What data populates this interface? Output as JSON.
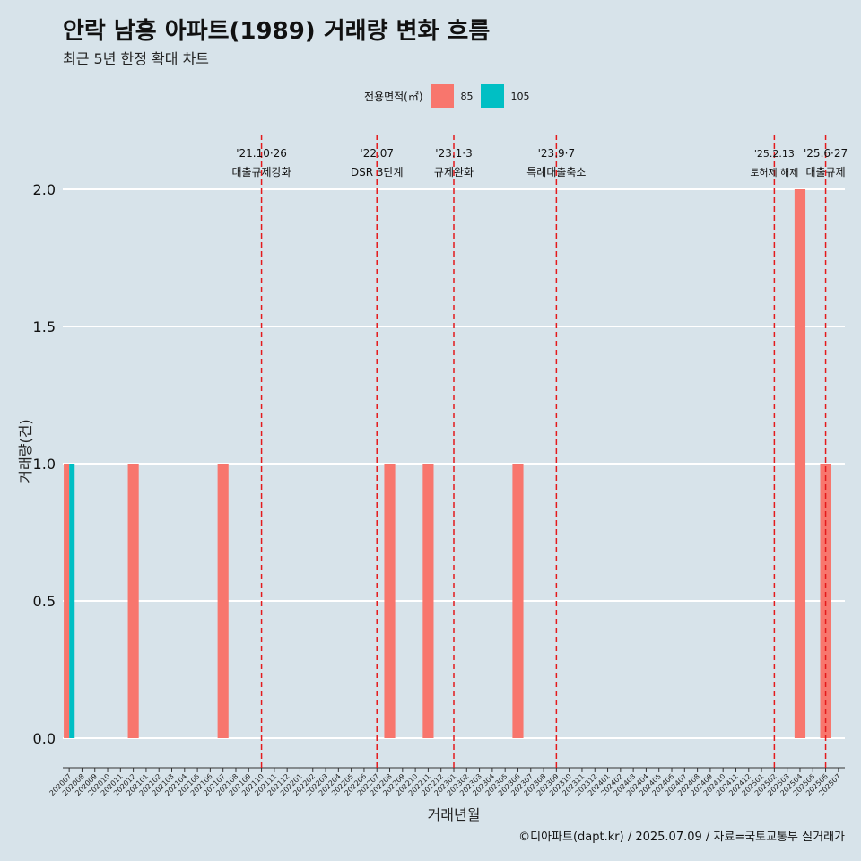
{
  "title": "안락 남흥 아파트(1989) 거래량 변화 흐름",
  "subtitle": "최근 5년 한정 확대 차트",
  "legend": {
    "title": "전용면적(㎡)"
  },
  "caption": "©디아파트(dapt.kr) / 2025.07.09 / 자료=국토교통부 실거래가",
  "colors": {
    "85": "#f8766d",
    "105": "#00bfc4",
    "background": "#d7e3ea",
    "grid": "#ffffff",
    "event_line": "#e41a1c"
  },
  "chart_data": {
    "type": "bar",
    "xlabel": "거래년월",
    "ylabel": "거래량(건)",
    "ylim": [
      0,
      2
    ],
    "yticks": [
      "0.0",
      "0.5",
      "1.0",
      "1.5",
      "2.0"
    ],
    "grid": true,
    "legend_position": "top",
    "categories": [
      "202007",
      "202008",
      "202009",
      "202010",
      "202011",
      "202012",
      "202101",
      "202102",
      "202103",
      "202104",
      "202105",
      "202106",
      "202107",
      "202108",
      "202109",
      "202110",
      "202111",
      "202112",
      "202201",
      "202202",
      "202203",
      "202204",
      "202205",
      "202206",
      "202207",
      "202208",
      "202209",
      "202210",
      "202211",
      "202212",
      "202301",
      "202302",
      "202303",
      "202304",
      "202305",
      "202306",
      "202307",
      "202308",
      "202309",
      "202310",
      "202311",
      "202312",
      "202401",
      "202402",
      "202403",
      "202404",
      "202405",
      "202406",
      "202407",
      "202408",
      "202409",
      "202410",
      "202411",
      "202412",
      "202501",
      "202502",
      "202503",
      "202504",
      "202505",
      "202506",
      "202507"
    ],
    "series": [
      {
        "name": "85",
        "values": [
          1,
          0,
          0,
          0,
          0,
          1,
          0,
          0,
          0,
          0,
          0,
          0,
          1,
          0,
          0,
          0,
          0,
          0,
          0,
          0,
          0,
          0,
          0,
          0,
          0,
          1,
          0,
          0,
          1,
          0,
          0,
          0,
          0,
          0,
          0,
          1,
          0,
          0,
          0,
          0,
          0,
          0,
          0,
          0,
          0,
          0,
          0,
          0,
          0,
          0,
          0,
          0,
          0,
          0,
          0,
          0,
          0,
          2,
          0,
          1,
          0
        ]
      },
      {
        "name": "105",
        "values": [
          1,
          0,
          0,
          0,
          0,
          0,
          0,
          0,
          0,
          0,
          0,
          0,
          0,
          0,
          0,
          0,
          0,
          0,
          0,
          0,
          0,
          0,
          0,
          0,
          0,
          0,
          0,
          0,
          0,
          0,
          0,
          0,
          0,
          0,
          0,
          0,
          0,
          0,
          0,
          0,
          0,
          0,
          0,
          0,
          0,
          0,
          0,
          0,
          0,
          0,
          0,
          0,
          0,
          0,
          0,
          0,
          0,
          0,
          0,
          0,
          0
        ]
      }
    ],
    "events": [
      {
        "date": "'21.10·26",
        "label": "대출규제강화",
        "at": "202110"
      },
      {
        "date": "'22.07",
        "label": "DSR 3단계",
        "at": "202207"
      },
      {
        "date": "'23.1·3",
        "label": "규제완화",
        "at": "202301"
      },
      {
        "date": "'23.9·7",
        "label": "특례대출축소",
        "at": "202309"
      },
      {
        "date": "'25.2.13",
        "label": "토허제 해제",
        "at": "202502"
      },
      {
        "date": "'25.6·27",
        "label": "대출규제",
        "at": "202506"
      }
    ]
  }
}
